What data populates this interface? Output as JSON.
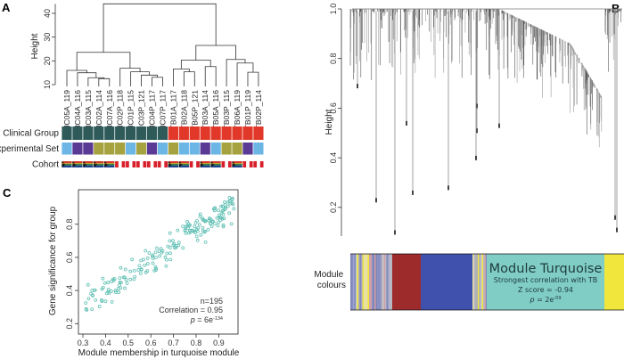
{
  "panels": {
    "a": "A",
    "b": "B",
    "c": "C"
  },
  "colors": {
    "healthy": "#2f5a5a",
    "tb": "#e2382a",
    "set_light_blue": "#6cb6e6",
    "set_purple": "#5a3a95",
    "set_olive": "#a5a23f",
    "turquoise": "#80cdc6",
    "red_module": "#9e2b2b",
    "blue_module": "#3f50ad",
    "yellow_module": "#f1e63b",
    "scatter_point": "#5fbfb3"
  },
  "chart_data": [
    {
      "type": "dendrogram",
      "panel": "A",
      "ylabel": "Height",
      "ylim": [
        10,
        45
      ],
      "yticks": [
        "10",
        "20",
        "30",
        "40"
      ],
      "leaves": [
        "HC05A_119",
        "HC04A_116",
        "HC03A_115",
        "HC02A_114",
        "HC07A_116",
        "HC02P_118",
        "HC01P_115",
        "HC03P_121",
        "HC04P_117",
        "HC07P_117",
        "TB01A_117",
        "TB02A_118",
        "TB05P_121",
        "TB03A_114",
        "TB05A_116",
        "TB03P_115",
        "TB06A_119",
        "TB01P_119",
        "TB02P_114"
      ],
      "tree": {
        "h": 44,
        "c": [
          {
            "h": 23.6,
            "c": [
              {
                "h": 16,
                "c": [
                  0,
                  {
                    "h": 15,
                    "c": [
                      1,
                      {
                        "h": 12.9,
                        "c": [
                          2,
                          {
                            "h": 12.5,
                            "c": [
                              3,
                              4
                            ]
                          }
                        ]
                      }
                    ]
                  }
                ]
              },
              {
                "h": 16.9,
                "c": [
                  5,
                  {
                    "h": 15.4,
                    "c": [
                      6,
                      {
                        "h": 14,
                        "c": [
                          7,
                          {
                            "h": 13.1,
                            "c": [
                              8,
                              9
                            ]
                          }
                        ]
                      }
                    ]
                  }
                ]
              }
            ]
          },
          {
            "h": 26.5,
            "c": [
              {
                "h": 20.3,
                "c": [
                  {
                    "h": 16.6,
                    "c": [
                      10,
                      {
                        "h": 15.4,
                        "c": [
                          11,
                          12
                        ]
                      }
                    ]
                  },
                  {
                    "h": 17.6,
                    "c": [
                      13,
                      14
                    ]
                  }
                ]
              },
              {
                "h": 20.6,
                "c": [
                  15,
                  {
                    "h": 19.1,
                    "c": [
                      16,
                      {
                        "h": 15.2,
                        "c": [
                          17,
                          18
                        ]
                      }
                    ]
                  }
                ]
              }
            ]
          }
        ]
      },
      "annotation_rows": [
        {
          "label": "Clinical Group",
          "values": [
            "healthy",
            "healthy",
            "healthy",
            "healthy",
            "healthy",
            "healthy",
            "healthy",
            "healthy",
            "healthy",
            "healthy",
            "tb",
            "tb",
            "tb",
            "tb",
            "tb",
            "tb",
            "tb",
            "tb",
            "tb"
          ]
        },
        {
          "label": "Experimental Set",
          "values": [
            "set_light_blue",
            "set_purple",
            "set_purple",
            "set_olive",
            "set_olive",
            "set_olive",
            "set_light_blue",
            "set_olive",
            "set_purple",
            "set_light_blue",
            "set_olive",
            "set_light_blue",
            "set_light_blue",
            "set_purple",
            "set_light_blue",
            "set_olive",
            "set_olive",
            "set_purple",
            "set_light_blue"
          ]
        },
        {
          "label": "Cohort",
          "values": [
            "south-africa-flag",
            "south-africa-flag",
            "south-africa-flag",
            "south-africa-flag",
            "south-africa-flag",
            "peru-flag",
            "peru-flag",
            "peru-flag",
            "peru-flag",
            "peru-flag",
            "south-africa-flag",
            "south-africa-flag",
            "peru-flag",
            "south-africa-flag",
            "south-africa-flag",
            "peru-flag",
            "south-africa-flag",
            "peru-flag",
            "peru-flag"
          ]
        }
      ]
    },
    {
      "type": "dendrogram",
      "panel": "B",
      "ylabel": "Height",
      "ylim": [
        0.1,
        1.0
      ],
      "yticks": [
        "0.2",
        "0.4",
        "0.6",
        "0.8",
        "1.0"
      ],
      "color_bar_label": "Module colours",
      "module_segments": [
        "mixed",
        "red_module",
        "blue_module",
        "mixed",
        "turquoise",
        "yellow_module"
      ],
      "callout": {
        "title": "Module Turquoise",
        "line1": "Strongest correlation with TB",
        "line2": "Z score = -0.94",
        "p_prefix": "p",
        "p_value": " = 2e",
        "p_exp": "-09"
      }
    },
    {
      "type": "scatter",
      "panel": "C",
      "xlabel": "Module membership in turquoise module",
      "ylabel": "Gene significance for group",
      "xlim": [
        0.29,
        0.99
      ],
      "ylim": [
        0.15,
        0.98
      ],
      "xticks": [
        "0.3",
        "0.4",
        "0.5",
        "0.6",
        "0.7",
        "0.8",
        "0.9"
      ],
      "yticks": [
        "0.2",
        "0.4",
        "0.6",
        "0.8"
      ],
      "n_label": "n=195",
      "corr_label": "Correlation = 0.95",
      "p_prefix": "p",
      "p_value": " = 6e",
      "p_exp": "-134",
      "n": 195
    }
  ]
}
